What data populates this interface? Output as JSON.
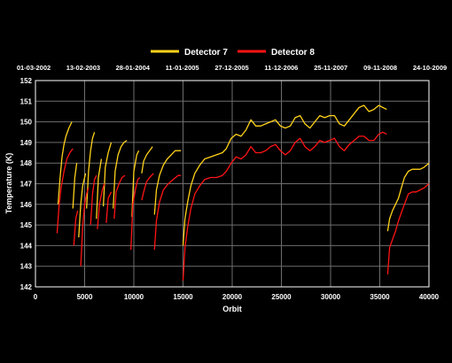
{
  "chart_data": {
    "type": "line",
    "xlabel": "Orbit",
    "ylabel": "Temperature (K)",
    "xlim": [
      0,
      40000
    ],
    "ylim": [
      142,
      152
    ],
    "xticks": [
      0,
      5000,
      10000,
      15000,
      20000,
      25000,
      30000,
      35000,
      40000
    ],
    "yticks": [
      142,
      143,
      144,
      145,
      146,
      147,
      148,
      149,
      150,
      151,
      152
    ],
    "grid": true,
    "legend_position": "top-center",
    "top_axis_dates": [
      "01-03-2002",
      "13-02-2003",
      "28-01-2004",
      "11-01-2005",
      "27-12-2005",
      "11-12-2006",
      "25-11-2007",
      "09-11-2008",
      "24-10-2009"
    ],
    "series": [
      {
        "name": "Detector 7",
        "color": "#ffd21a",
        "segments": [
          [
            [
              2300,
              146.0
            ],
            [
              2500,
              147.3
            ],
            [
              2700,
              148.3
            ],
            [
              2900,
              148.9
            ],
            [
              3100,
              149.3
            ],
            [
              3400,
              149.7
            ],
            [
              3700,
              150.0
            ]
          ],
          [
            [
              3800,
              145.8
            ],
            [
              4000,
              147.3
            ],
            [
              4200,
              148.0
            ]
          ],
          [
            [
              4400,
              144.4
            ],
            [
              4600,
              146.0
            ],
            [
              4800,
              146.9
            ],
            [
              5100,
              147.5
            ]
          ],
          [
            [
              5200,
              145.8
            ],
            [
              5400,
              147.6
            ],
            [
              5600,
              148.6
            ],
            [
              5800,
              149.2
            ],
            [
              6000,
              149.5
            ]
          ],
          [
            [
              6200,
              145.3
            ],
            [
              6400,
              147.3
            ],
            [
              6700,
              148.2
            ]
          ],
          [
            [
              6900,
              145.9
            ],
            [
              7100,
              147.8
            ],
            [
              7400,
              148.5
            ],
            [
              7700,
              149.0
            ]
          ],
          [
            [
              7900,
              145.8
            ],
            [
              8100,
              147.6
            ],
            [
              8400,
              148.4
            ],
            [
              8700,
              148.8
            ],
            [
              9000,
              149.0
            ],
            [
              9300,
              149.1
            ]
          ],
          [
            [
              9800,
              145.4
            ],
            [
              10000,
              147.6
            ],
            [
              10300,
              148.4
            ],
            [
              10500,
              148.6
            ]
          ],
          [
            [
              10800,
              147.5
            ],
            [
              11000,
              148.1
            ],
            [
              11300,
              148.4
            ],
            [
              11600,
              148.6
            ],
            [
              11900,
              148.8
            ]
          ],
          [
            [
              12100,
              145.5
            ],
            [
              12300,
              146.7
            ],
            [
              12600,
              147.4
            ],
            [
              13000,
              147.9
            ],
            [
              13400,
              148.2
            ],
            [
              13800,
              148.4
            ],
            [
              14200,
              148.6
            ],
            [
              14600,
              148.6
            ],
            [
              14800,
              148.6
            ]
          ],
          [
            [
              15000,
              144.0
            ],
            [
              15200,
              145.3
            ],
            [
              15500,
              146.2
            ],
            [
              15800,
              146.9
            ],
            [
              16200,
              147.5
            ],
            [
              16700,
              147.9
            ],
            [
              17200,
              148.2
            ],
            [
              17800,
              148.3
            ],
            [
              18400,
              148.4
            ],
            [
              19000,
              148.5
            ],
            [
              19400,
              148.7
            ],
            [
              19900,
              149.2
            ],
            [
              20400,
              149.4
            ],
            [
              20900,
              149.3
            ],
            [
              21400,
              149.6
            ],
            [
              21900,
              150.1
            ],
            [
              22400,
              149.8
            ],
            [
              22900,
              149.8
            ],
            [
              23400,
              149.9
            ],
            [
              23900,
              150.0
            ],
            [
              24400,
              150.1
            ],
            [
              24900,
              149.8
            ],
            [
              25400,
              149.7
            ],
            [
              25900,
              149.8
            ],
            [
              26400,
              150.2
            ],
            [
              26900,
              150.3
            ],
            [
              27400,
              149.9
            ],
            [
              27900,
              149.7
            ],
            [
              28400,
              150.0
            ],
            [
              28900,
              150.3
            ],
            [
              29400,
              150.2
            ],
            [
              29900,
              150.3
            ],
            [
              30400,
              150.3
            ],
            [
              30900,
              149.9
            ],
            [
              31400,
              149.8
            ],
            [
              31900,
              150.1
            ],
            [
              32400,
              150.4
            ],
            [
              32900,
              150.7
            ],
            [
              33400,
              150.8
            ],
            [
              33900,
              150.5
            ],
            [
              34400,
              150.6
            ],
            [
              34900,
              150.8
            ],
            [
              35300,
              150.7
            ],
            [
              35700,
              150.6
            ]
          ],
          [
            [
              35800,
              144.7
            ],
            [
              36000,
              145.3
            ],
            [
              36300,
              145.7
            ],
            [
              36600,
              146.0
            ],
            [
              36900,
              146.3
            ],
            [
              37200,
              146.8
            ],
            [
              37500,
              147.3
            ],
            [
              37900,
              147.6
            ],
            [
              38300,
              147.7
            ],
            [
              38700,
              147.7
            ],
            [
              39100,
              147.7
            ],
            [
              39500,
              147.8
            ],
            [
              40000,
              148.0
            ]
          ]
        ]
      },
      {
        "name": "Detector 8",
        "color": "#ff1414",
        "segments": [
          [
            [
              2200,
              144.6
            ],
            [
              2400,
              145.9
            ],
            [
              2600,
              146.8
            ],
            [
              2900,
              147.6
            ],
            [
              3200,
              148.2
            ],
            [
              3500,
              148.5
            ],
            [
              3800,
              148.7
            ]
          ],
          [
            [
              3900,
              144.0
            ],
            [
              4100,
              145.3
            ],
            [
              4300,
              145.7
            ]
          ],
          [
            [
              4600,
              143.0
            ],
            [
              4800,
              144.9
            ],
            [
              5000,
              146.0
            ],
            [
              5200,
              146.5
            ],
            [
              5400,
              146.8
            ]
          ],
          [
            [
              5600,
              145.0
            ],
            [
              5800,
              146.5
            ],
            [
              6000,
              147.2
            ],
            [
              6200,
              147.4
            ]
          ],
          [
            [
              6300,
              144.8
            ],
            [
              6500,
              146.0
            ],
            [
              6800,
              146.7
            ],
            [
              7000,
              147.0
            ]
          ],
          [
            [
              7200,
              145.1
            ],
            [
              7400,
              146.3
            ],
            [
              7700,
              146.6
            ]
          ],
          [
            [
              8000,
              145.3
            ],
            [
              8200,
              146.6
            ],
            [
              8500,
              147.0
            ],
            [
              8800,
              147.3
            ],
            [
              9100,
              147.4
            ]
          ],
          [
            [
              9700,
              143.8
            ],
            [
              9900,
              146.0
            ],
            [
              10200,
              146.8
            ],
            [
              10400,
              147.2
            ],
            [
              10600,
              147.3
            ]
          ],
          [
            [
              10800,
              146.2
            ],
            [
              11000,
              146.6
            ],
            [
              11300,
              147.1
            ],
            [
              11600,
              147.3
            ],
            [
              12000,
              147.5
            ]
          ],
          [
            [
              12100,
              143.8
            ],
            [
              12300,
              145.2
            ],
            [
              12600,
              146.1
            ],
            [
              13000,
              146.7
            ],
            [
              13500,
              147.0
            ],
            [
              14000,
              147.2
            ],
            [
              14500,
              147.4
            ],
            [
              14800,
              147.4
            ]
          ],
          [
            [
              15000,
              142.3
            ],
            [
              15200,
              143.9
            ],
            [
              15500,
              145.0
            ],
            [
              15800,
              145.8
            ],
            [
              16200,
              146.5
            ],
            [
              16700,
              146.9
            ],
            [
              17200,
              147.2
            ],
            [
              17800,
              147.3
            ],
            [
              18400,
              147.3
            ],
            [
              19000,
              147.4
            ],
            [
              19400,
              147.6
            ],
            [
              19900,
              148.0
            ],
            [
              20400,
              148.3
            ],
            [
              20900,
              148.2
            ],
            [
              21400,
              148.4
            ],
            [
              21900,
              148.8
            ],
            [
              22400,
              148.5
            ],
            [
              22900,
              148.5
            ],
            [
              23400,
              148.6
            ],
            [
              23900,
              148.8
            ],
            [
              24400,
              148.9
            ],
            [
              24900,
              148.6
            ],
            [
              25400,
              148.4
            ],
            [
              25900,
              148.6
            ],
            [
              26400,
              149.0
            ],
            [
              26900,
              149.2
            ],
            [
              27400,
              148.8
            ],
            [
              27900,
              148.6
            ],
            [
              28400,
              148.8
            ],
            [
              28900,
              149.1
            ],
            [
              29400,
              149.0
            ],
            [
              29900,
              149.1
            ],
            [
              30400,
              149.2
            ],
            [
              30900,
              148.8
            ],
            [
              31400,
              148.6
            ],
            [
              31900,
              148.9
            ],
            [
              32400,
              149.1
            ],
            [
              32900,
              149.3
            ],
            [
              33400,
              149.3
            ],
            [
              33900,
              149.1
            ],
            [
              34400,
              149.1
            ],
            [
              34900,
              149.4
            ],
            [
              35300,
              149.5
            ],
            [
              35700,
              149.4
            ]
          ],
          [
            [
              35800,
              142.6
            ],
            [
              36000,
              143.9
            ],
            [
              36300,
              144.3
            ],
            [
              36600,
              144.7
            ],
            [
              36900,
              145.2
            ],
            [
              37200,
              145.6
            ],
            [
              37500,
              146.0
            ],
            [
              37900,
              146.5
            ],
            [
              38300,
              146.6
            ],
            [
              38700,
              146.6
            ],
            [
              39100,
              146.7
            ],
            [
              39500,
              146.8
            ],
            [
              40000,
              147.0
            ]
          ]
        ]
      }
    ]
  }
}
